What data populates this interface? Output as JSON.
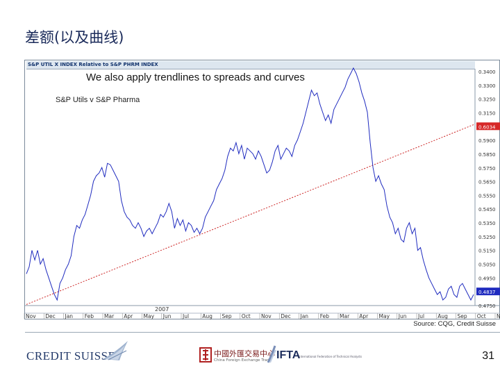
{
  "slide": {
    "title": "差额(以及曲线)",
    "page_number": "31",
    "source": "Source: CQG, Credit Suisse"
  },
  "logos": {
    "credit_suisse": "CREDIT SUISSE",
    "partner_cn": "中國外匯交易中心",
    "partner_en": "China Foreign Exchange Trade",
    "ifta": "IFTA",
    "ifta_sub": "International Federation of Technical Analysts"
  },
  "colors": {
    "series": "#1f2bbf",
    "trendline": "#cc2222",
    "label_box_red": "#d62828",
    "label_box_blue": "#1f2bbf",
    "title": "#1a2a5a"
  },
  "chart_data": {
    "type": "line",
    "header": "S&P UTIL X INDEX Relative to S&P PHRM INDEX",
    "annotation": "We also apply trendlines to spreads and curves",
    "legend": "S&P Utils v S&P Pharma",
    "year_label": "2007",
    "y_ticks": [
      "0.3400",
      "0.3300",
      "0.3250",
      "0.3150",
      "0.6034",
      "0.5900",
      "0.5850",
      "0.5750",
      "0.5650",
      "0.5550",
      "0.5450",
      "0.5350",
      "0.5250",
      "0.5150",
      "0.5050",
      "0.4950",
      "0.4837",
      "0.4750"
    ],
    "y_label_values": {
      "last": "0.4837",
      "trend": "0.6034"
    },
    "x_ticks": [
      "Nov",
      "Dec",
      "Jan",
      "Feb",
      "Mar",
      "Apr",
      "May",
      "Jun",
      "Jul",
      "Aug",
      "Sep",
      "Oct",
      "Nov",
      "Dec",
      "Jan",
      "Feb",
      "Mar",
      "Apr",
      "May",
      "Jun",
      "Jul",
      "Aug",
      "Sep",
      "Oct",
      "N"
    ],
    "ylim": [
      0.472,
      0.643
    ],
    "series": [
      {
        "name": "",
        "values": [
          0.495,
          0.5,
          0.512,
          0.505,
          0.512,
          0.502,
          0.506,
          0.498,
          0.492,
          0.486,
          0.48,
          0.476,
          0.488,
          0.492,
          0.498,
          0.502,
          0.508,
          0.522,
          0.53,
          0.528,
          0.534,
          0.538,
          0.545,
          0.552,
          0.562,
          0.566,
          0.568,
          0.572,
          0.565,
          0.575,
          0.574,
          0.57,
          0.566,
          0.562,
          0.548,
          0.54,
          0.536,
          0.534,
          0.53,
          0.528,
          0.532,
          0.528,
          0.522,
          0.526,
          0.528,
          0.524,
          0.528,
          0.532,
          0.538,
          0.536,
          0.54,
          0.546,
          0.54,
          0.528,
          0.535,
          0.53,
          0.534,
          0.526,
          0.532,
          0.53,
          0.525,
          0.528,
          0.524,
          0.528,
          0.536,
          0.54,
          0.544,
          0.548,
          0.556,
          0.56,
          0.564,
          0.57,
          0.58,
          0.586,
          0.584,
          0.59,
          0.582,
          0.588,
          0.578,
          0.586,
          0.584,
          0.582,
          0.578,
          0.584,
          0.58,
          0.574,
          0.568,
          0.57,
          0.576,
          0.584,
          0.588,
          0.578,
          0.582,
          0.586,
          0.584,
          0.58,
          0.588,
          0.592,
          0.598,
          0.604,
          0.612,
          0.62,
          0.628,
          0.624,
          0.626,
          0.618,
          0.612,
          0.606,
          0.61,
          0.604,
          0.614,
          0.618,
          0.622,
          0.626,
          0.63,
          0.636,
          0.64,
          0.644,
          0.64,
          0.634,
          0.626,
          0.62,
          0.612,
          0.59,
          0.572,
          0.562,
          0.566,
          0.56,
          0.556,
          0.544,
          0.536,
          0.532,
          0.524,
          0.528,
          0.52,
          0.518,
          0.528,
          0.532,
          0.524,
          0.528,
          0.512,
          0.514,
          0.505,
          0.498,
          0.492,
          0.488,
          0.484,
          0.48,
          0.482,
          0.476,
          0.478,
          0.484,
          0.486,
          0.48,
          0.478,
          0.486,
          0.488,
          0.484,
          0.48,
          0.476,
          0.48
        ]
      }
    ],
    "trendline": {
      "from": [
        0,
        0.4728
      ],
      "to": [
        164,
        0.6034
      ],
      "style": "dashed"
    },
    "grid": false,
    "legend_position": "top-left"
  }
}
